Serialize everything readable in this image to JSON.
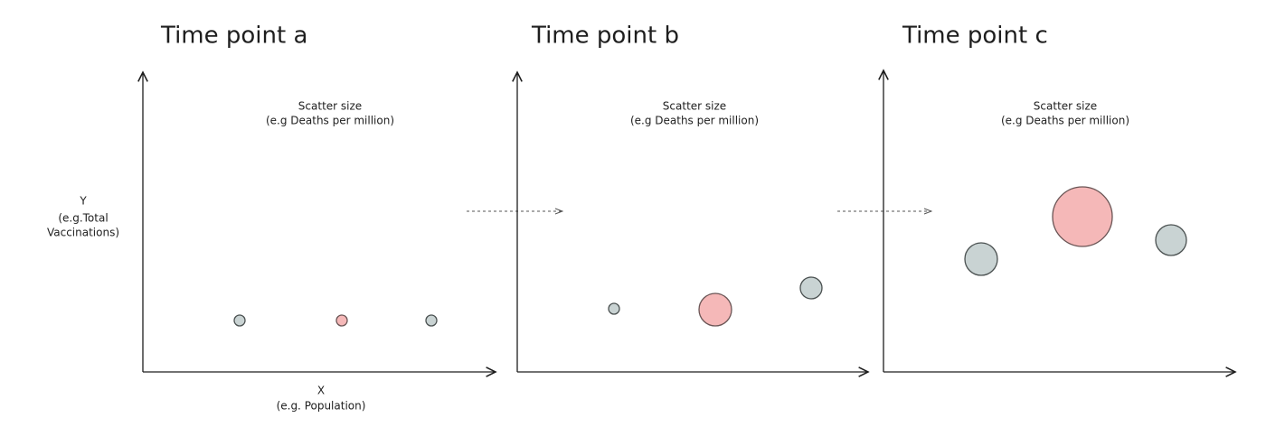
{
  "panels": [
    {
      "title": "Time point a",
      "size_label": [
        "Scatter size",
        "(e.g Deaths per million)"
      ]
    },
    {
      "title": "Time point b",
      "size_label": [
        "Scatter size",
        "(e.g Deaths per million)"
      ]
    },
    {
      "title": "Time point c",
      "size_label": [
        "Scatter size",
        "(e.g Deaths per million)"
      ]
    }
  ],
  "y_axis_label": [
    "Y",
    "(e.g.Total",
    "Vaccinations)"
  ],
  "x_axis_label": [
    "X",
    "(e.g. Population)"
  ]
}
